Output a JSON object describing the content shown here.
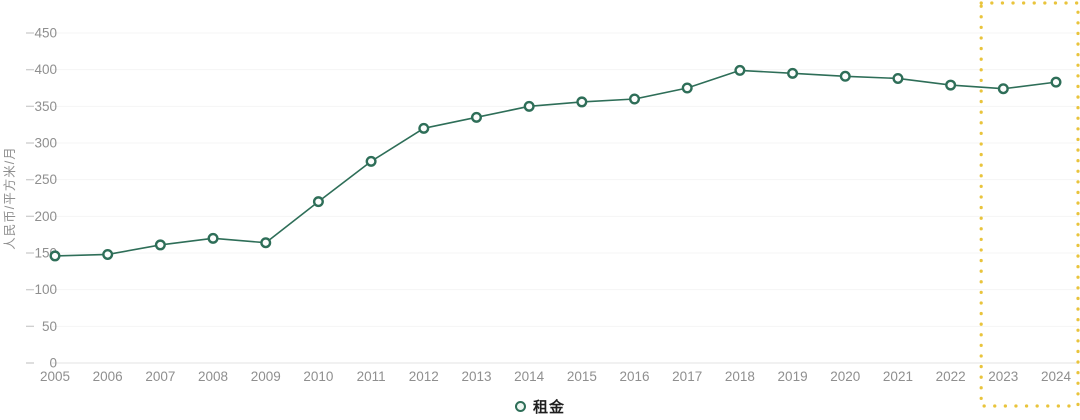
{
  "chart_data": {
    "type": "line",
    "title": "",
    "x": [
      "2005",
      "2006",
      "2007",
      "2008",
      "2009",
      "2010",
      "2011",
      "2012",
      "2013",
      "2014",
      "2015",
      "2016",
      "2017",
      "2018",
      "2019",
      "2020",
      "2021",
      "2022",
      "2023",
      "2024"
    ],
    "series": [
      {
        "name": "租金",
        "values": [
          146,
          148,
          161,
          170,
          164,
          220,
          275,
          320,
          335,
          350,
          356,
          360,
          375,
          399,
          395,
          391,
          388,
          379,
          374,
          383
        ]
      }
    ],
    "xlabel": "",
    "ylabel": "人民币/平方米/月",
    "ylim": [
      0,
      450
    ],
    "ytick_step": 50,
    "grid": true,
    "legend_position": "bottom",
    "highlight_region": {
      "x_from": "2023",
      "x_to": "2024",
      "style": "dotted"
    },
    "colors": {
      "line": "#2E6E58",
      "marker_fill": "#FDFDFD",
      "axis_text": "#8F8F8F",
      "grid_line": "#F4F4F4",
      "baseline": "#E3E3E3",
      "tick_dash": "#CFCFCF",
      "highlight": "#E9C43C"
    }
  },
  "legend": {
    "label": "租金"
  }
}
